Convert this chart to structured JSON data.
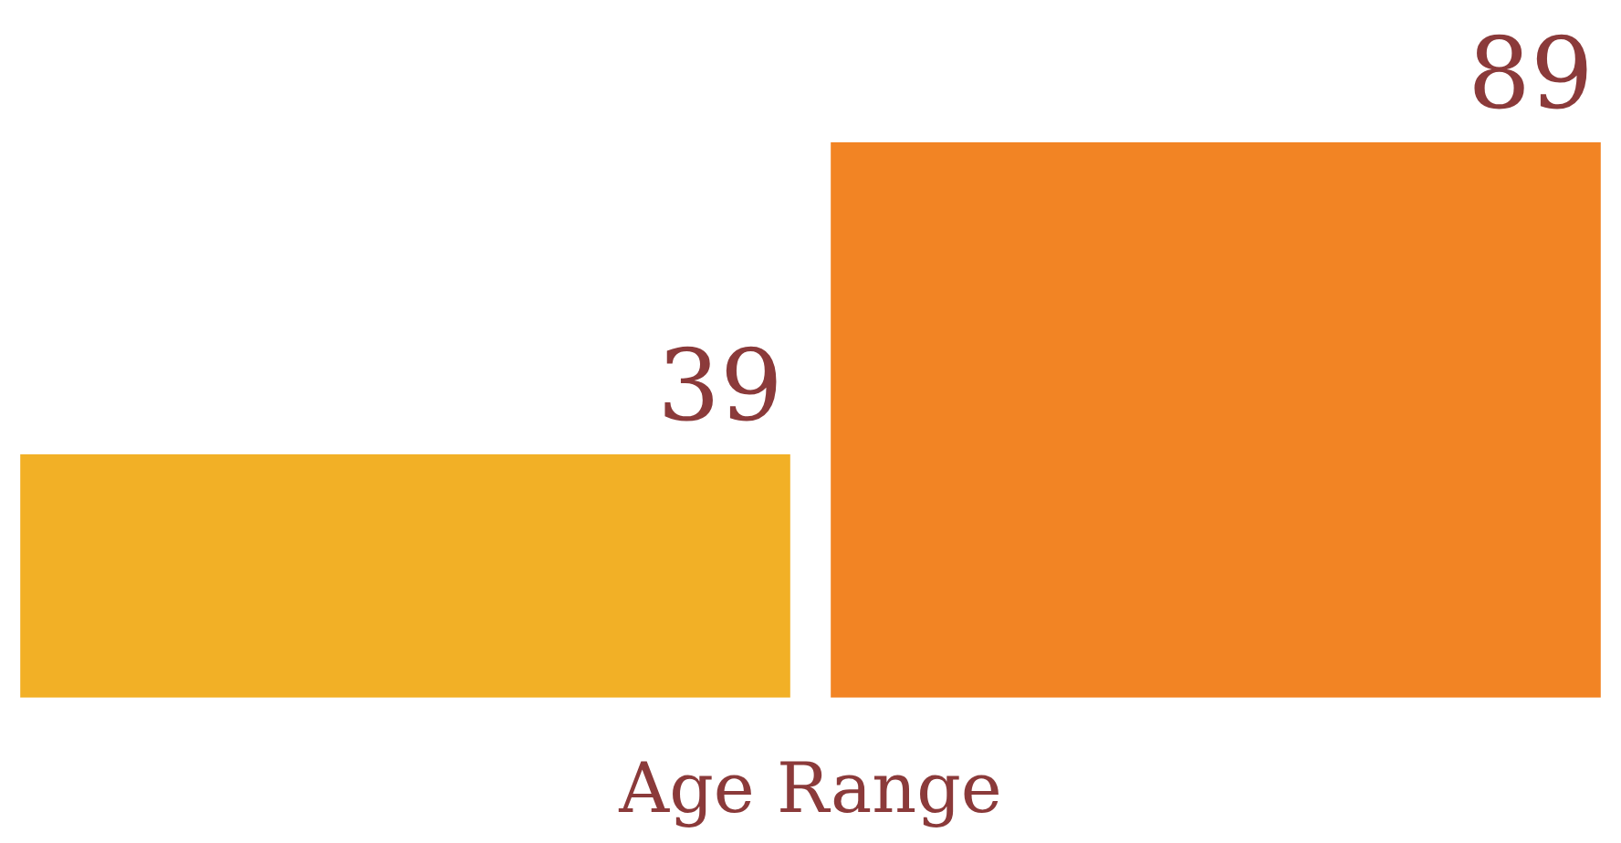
{
  "chart_data": {
    "type": "bar",
    "xlabel": "Age Range",
    "categories": [
      null,
      null
    ],
    "values": [
      39,
      89
    ],
    "colors": [
      "#f2b026",
      "#f28424"
    ],
    "data_labels": true,
    "tick_labels": false
  }
}
